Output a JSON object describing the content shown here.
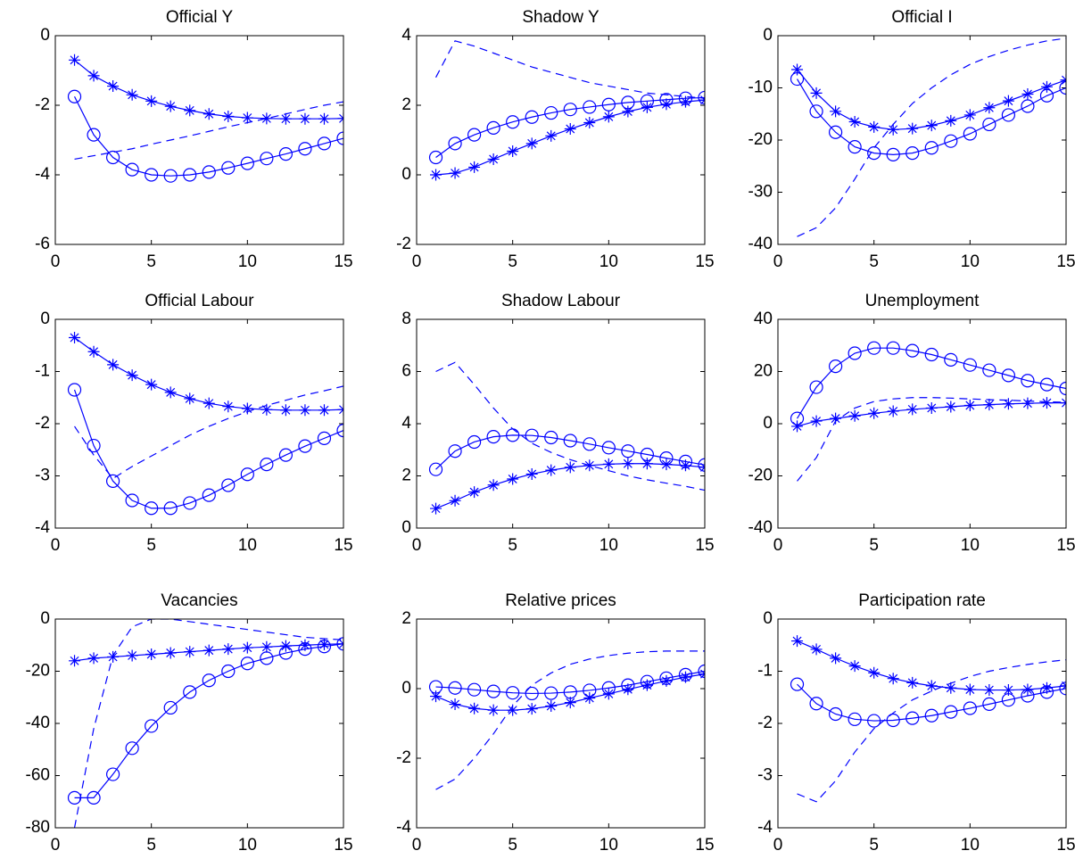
{
  "chart_data": [
    {
      "type": "line",
      "title": "Official Y",
      "x": [
        1,
        2,
        3,
        4,
        5,
        6,
        7,
        8,
        9,
        10,
        11,
        12,
        13,
        14,
        15
      ],
      "xlim": [
        0,
        15
      ],
      "xticks": [
        0,
        5,
        10,
        15
      ],
      "ylim": [
        -6,
        0
      ],
      "yticks": [
        -6,
        -4,
        -2,
        0
      ],
      "series": [
        {
          "color": "#0000ff",
          "marker": "none",
          "dash": true,
          "values": [
            -3.55,
            -3.45,
            -3.35,
            -3.25,
            -3.12,
            -3.0,
            -2.88,
            -2.75,
            -2.62,
            -2.5,
            -2.38,
            -2.25,
            -2.12,
            -2.0,
            -1.9
          ]
        },
        {
          "color": "#0000ff",
          "marker": "circle",
          "dash": false,
          "values": [
            -1.75,
            -2.85,
            -3.5,
            -3.85,
            -4.0,
            -4.03,
            -4.0,
            -3.92,
            -3.8,
            -3.67,
            -3.53,
            -3.4,
            -3.25,
            -3.1,
            -2.95
          ]
        },
        {
          "color": "#0000ff",
          "marker": "star",
          "dash": false,
          "values": [
            -0.7,
            -1.15,
            -1.45,
            -1.7,
            -1.88,
            -2.03,
            -2.15,
            -2.25,
            -2.32,
            -2.36,
            -2.38,
            -2.39,
            -2.39,
            -2.39,
            -2.38
          ]
        }
      ]
    },
    {
      "type": "line",
      "title": "Shadow Y",
      "x": [
        1,
        2,
        3,
        4,
        5,
        6,
        7,
        8,
        9,
        10,
        11,
        12,
        13,
        14,
        15
      ],
      "xlim": [
        0,
        15
      ],
      "xticks": [
        0,
        5,
        10,
        15
      ],
      "ylim": [
        -2,
        4
      ],
      "yticks": [
        -2,
        0,
        2,
        4
      ],
      "series": [
        {
          "color": "#0000ff",
          "marker": "none",
          "dash": true,
          "values": [
            2.8,
            3.85,
            3.7,
            3.5,
            3.3,
            3.1,
            2.95,
            2.8,
            2.65,
            2.55,
            2.45,
            2.35,
            2.3,
            2.25,
            2.2
          ]
        },
        {
          "color": "#0000ff",
          "marker": "circle",
          "dash": false,
          "values": [
            0.5,
            0.9,
            1.15,
            1.35,
            1.52,
            1.66,
            1.78,
            1.88,
            1.95,
            2.02,
            2.08,
            2.12,
            2.16,
            2.2,
            2.22
          ]
        },
        {
          "color": "#0000ff",
          "marker": "star",
          "dash": false,
          "values": [
            0,
            0.05,
            0.22,
            0.45,
            0.68,
            0.9,
            1.12,
            1.32,
            1.5,
            1.67,
            1.82,
            1.94,
            2.03,
            2.1,
            2.15
          ]
        }
      ]
    },
    {
      "type": "line",
      "title": "Official I",
      "x": [
        1,
        2,
        3,
        4,
        5,
        6,
        7,
        8,
        9,
        10,
        11,
        12,
        13,
        14,
        15
      ],
      "xlim": [
        0,
        15
      ],
      "xticks": [
        0,
        5,
        10,
        15
      ],
      "ylim": [
        -40,
        0
      ],
      "yticks": [
        -40,
        -30,
        -20,
        -10,
        0
      ],
      "series": [
        {
          "color": "#0000ff",
          "marker": "none",
          "dash": true,
          "values": [
            -38.5,
            -36.8,
            -33,
            -27.5,
            -21.5,
            -17,
            -13,
            -10,
            -7.5,
            -5.5,
            -4,
            -2.8,
            -1.8,
            -1,
            -0.5
          ]
        },
        {
          "color": "#0000ff",
          "marker": "circle",
          "dash": false,
          "values": [
            -8.3,
            -14.5,
            -18.5,
            -21.3,
            -22.5,
            -22.8,
            -22.5,
            -21.5,
            -20.2,
            -18.8,
            -17,
            -15.2,
            -13.5,
            -11.5,
            -10
          ]
        },
        {
          "color": "#0000ff",
          "marker": "star",
          "dash": false,
          "values": [
            -6.5,
            -11,
            -14.5,
            -16.5,
            -17.5,
            -18,
            -17.8,
            -17.2,
            -16.3,
            -15.2,
            -13.8,
            -12.5,
            -11.2,
            -9.8,
            -8.5
          ]
        }
      ]
    },
    {
      "type": "line",
      "title": "Official Labour",
      "x": [
        1,
        2,
        3,
        4,
        5,
        6,
        7,
        8,
        9,
        10,
        11,
        12,
        13,
        14,
        15
      ],
      "xlim": [
        0,
        15
      ],
      "xticks": [
        0,
        5,
        10,
        15
      ],
      "ylim": [
        -4,
        0
      ],
      "yticks": [
        -4,
        -3,
        -2,
        -1,
        0
      ],
      "series": [
        {
          "color": "#0000ff",
          "marker": "none",
          "dash": true,
          "values": [
            -2.05,
            -2.6,
            -3.05,
            -2.82,
            -2.62,
            -2.42,
            -2.22,
            -2.05,
            -1.9,
            -1.77,
            -1.65,
            -1.55,
            -1.45,
            -1.37,
            -1.28
          ]
        },
        {
          "color": "#0000ff",
          "marker": "circle",
          "dash": false,
          "values": [
            -1.35,
            -2.42,
            -3.1,
            -3.47,
            -3.62,
            -3.62,
            -3.52,
            -3.37,
            -3.18,
            -2.97,
            -2.78,
            -2.6,
            -2.43,
            -2.28,
            -2.13
          ]
        },
        {
          "color": "#0000ff",
          "marker": "star",
          "dash": false,
          "values": [
            -0.35,
            -0.62,
            -0.87,
            -1.07,
            -1.25,
            -1.4,
            -1.52,
            -1.61,
            -1.67,
            -1.71,
            -1.73,
            -1.74,
            -1.74,
            -1.74,
            -1.73
          ]
        }
      ]
    },
    {
      "type": "line",
      "title": "Shadow Labour",
      "x": [
        1,
        2,
        3,
        4,
        5,
        6,
        7,
        8,
        9,
        10,
        11,
        12,
        13,
        14,
        15
      ],
      "xlim": [
        0,
        15
      ],
      "xticks": [
        0,
        5,
        10,
        15
      ],
      "ylim": [
        0,
        8
      ],
      "yticks": [
        0,
        2,
        4,
        6,
        8
      ],
      "series": [
        {
          "color": "#0000ff",
          "marker": "none",
          "dash": true,
          "values": [
            6.0,
            6.35,
            5.5,
            4.6,
            3.8,
            3.25,
            2.9,
            2.62,
            2.4,
            2.2,
            2.0,
            1.85,
            1.72,
            1.6,
            1.45
          ]
        },
        {
          "color": "#0000ff",
          "marker": "circle",
          "dash": false,
          "values": [
            2.25,
            2.95,
            3.3,
            3.5,
            3.56,
            3.55,
            3.47,
            3.35,
            3.22,
            3.08,
            2.95,
            2.82,
            2.68,
            2.55,
            2.42
          ]
        },
        {
          "color": "#0000ff",
          "marker": "star",
          "dash": false,
          "values": [
            0.75,
            1.05,
            1.38,
            1.65,
            1.88,
            2.07,
            2.22,
            2.33,
            2.4,
            2.45,
            2.47,
            2.47,
            2.44,
            2.4,
            2.33
          ]
        }
      ]
    },
    {
      "type": "line",
      "title": "Unemployment",
      "x": [
        1,
        2,
        3,
        4,
        5,
        6,
        7,
        8,
        9,
        10,
        11,
        12,
        13,
        14,
        15
      ],
      "xlim": [
        0,
        15
      ],
      "xticks": [
        0,
        5,
        10,
        15
      ],
      "ylim": [
        -40,
        40
      ],
      "yticks": [
        -40,
        -20,
        0,
        20,
        40
      ],
      "series": [
        {
          "color": "#0000ff",
          "marker": "none",
          "dash": true,
          "values": [
            -22,
            -13,
            1,
            6,
            8.5,
            9.5,
            10,
            10,
            9.8,
            9.5,
            9.2,
            9,
            8.7,
            8.4,
            8.2
          ]
        },
        {
          "color": "#0000ff",
          "marker": "circle",
          "dash": false,
          "values": [
            2,
            14,
            22,
            27,
            29,
            29,
            28,
            26.5,
            24.5,
            22.5,
            20.5,
            18.5,
            16.5,
            15,
            13.5
          ]
        },
        {
          "color": "#0000ff",
          "marker": "star",
          "dash": false,
          "values": [
            -1,
            1,
            2,
            3,
            4,
            4.8,
            5.5,
            6,
            6.5,
            7,
            7.3,
            7.6,
            7.8,
            8,
            8
          ]
        }
      ]
    },
    {
      "type": "line",
      "title": "Vacancies",
      "x": [
        1,
        2,
        3,
        4,
        5,
        6,
        7,
        8,
        9,
        10,
        11,
        12,
        13,
        14,
        15
      ],
      "xlim": [
        0,
        15
      ],
      "xticks": [
        0,
        5,
        10,
        15
      ],
      "ylim": [
        -80,
        0
      ],
      "yticks": [
        -80,
        -60,
        -40,
        -20,
        0
      ],
      "series": [
        {
          "color": "#0000ff",
          "marker": "none",
          "dash": true,
          "values": [
            -80,
            -42,
            -14,
            -3,
            0,
            0,
            -1,
            -2,
            -3,
            -4,
            -5,
            -6,
            -7,
            -7.5,
            -8
          ]
        },
        {
          "color": "#0000ff",
          "marker": "circle",
          "dash": false,
          "values": [
            -68.5,
            -68.5,
            -59.5,
            -49.5,
            -41,
            -34,
            -28,
            -23.5,
            -20,
            -17,
            -15,
            -13,
            -11.5,
            -10.5,
            -9.5
          ]
        },
        {
          "color": "#0000ff",
          "marker": "star",
          "dash": false,
          "values": [
            -16,
            -15,
            -14.5,
            -14,
            -13.5,
            -13,
            -12.5,
            -12,
            -11.5,
            -11,
            -10.7,
            -10.3,
            -10,
            -9.7,
            -9.5
          ]
        }
      ]
    },
    {
      "type": "line",
      "title": "Relative prices",
      "x": [
        1,
        2,
        3,
        4,
        5,
        6,
        7,
        8,
        9,
        10,
        11,
        12,
        13,
        14,
        15
      ],
      "xlim": [
        0,
        15
      ],
      "xticks": [
        0,
        5,
        10,
        15
      ],
      "ylim": [
        -4,
        2
      ],
      "yticks": [
        -4,
        -2,
        0,
        2
      ],
      "series": [
        {
          "color": "#0000ff",
          "marker": "none",
          "dash": true,
          "values": [
            -2.9,
            -2.6,
            -2.0,
            -1.3,
            -0.5,
            0.1,
            0.45,
            0.7,
            0.85,
            0.95,
            1.02,
            1.06,
            1.08,
            1.08,
            1.08
          ]
        },
        {
          "color": "#0000ff",
          "marker": "circle",
          "dash": false,
          "values": [
            0.05,
            0.02,
            -0.03,
            -0.08,
            -0.12,
            -0.14,
            -0.13,
            -0.1,
            -0.05,
            0.02,
            0.1,
            0.2,
            0.3,
            0.4,
            0.5
          ]
        },
        {
          "color": "#0000ff",
          "marker": "star",
          "dash": false,
          "values": [
            -0.22,
            -0.45,
            -0.57,
            -0.62,
            -0.62,
            -0.58,
            -0.5,
            -0.4,
            -0.27,
            -0.15,
            -0.02,
            0.1,
            0.22,
            0.33,
            0.42
          ]
        }
      ]
    },
    {
      "type": "line",
      "title": "Participation rate",
      "x": [
        1,
        2,
        3,
        4,
        5,
        6,
        7,
        8,
        9,
        10,
        11,
        12,
        13,
        14,
        15
      ],
      "xlim": [
        0,
        15
      ],
      "xticks": [
        0,
        5,
        10,
        15
      ],
      "ylim": [
        -4,
        0
      ],
      "yticks": [
        -4,
        -3,
        -2,
        -1,
        0
      ],
      "series": [
        {
          "color": "#0000ff",
          "marker": "none",
          "dash": true,
          "values": [
            -3.35,
            -3.5,
            -3.1,
            -2.55,
            -2.1,
            -1.8,
            -1.55,
            -1.38,
            -1.23,
            -1.1,
            -1.0,
            -0.93,
            -0.87,
            -0.82,
            -0.78
          ]
        },
        {
          "color": "#0000ff",
          "marker": "circle",
          "dash": false,
          "values": [
            -1.25,
            -1.62,
            -1.82,
            -1.92,
            -1.95,
            -1.94,
            -1.9,
            -1.85,
            -1.78,
            -1.71,
            -1.63,
            -1.55,
            -1.47,
            -1.4,
            -1.33
          ]
        },
        {
          "color": "#0000ff",
          "marker": "star",
          "dash": false,
          "values": [
            -0.42,
            -0.58,
            -0.75,
            -0.9,
            -1.03,
            -1.14,
            -1.22,
            -1.28,
            -1.32,
            -1.35,
            -1.36,
            -1.36,
            -1.35,
            -1.32,
            -1.28
          ]
        }
      ]
    }
  ]
}
